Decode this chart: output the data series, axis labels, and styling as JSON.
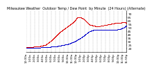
{
  "title": "Milwaukee Weather  Outdoor Temp / Dew Point  by Minute  (24 Hours) (Alternate)",
  "bg_color": "#ffffff",
  "plot_bg": "#ffffff",
  "grid_color": "#aaaaaa",
  "temp_color": "#dd0000",
  "dew_color": "#0000cc",
  "y_label_color": "#000000",
  "ylim": [
    15,
    75
  ],
  "yticks": [
    20,
    25,
    30,
    35,
    40,
    45,
    50,
    55,
    60,
    65,
    70
  ],
  "xlabel_fontsize": 3.0,
  "ylabel_fontsize": 3.2,
  "title_fontsize": 3.5,
  "num_points": 1440,
  "x_gridlines": [
    0,
    60,
    120,
    180,
    240,
    300,
    360,
    420,
    480,
    540,
    600,
    660,
    720,
    780,
    840,
    900,
    960,
    1020,
    1080,
    1140,
    1200,
    1260,
    1320,
    1380,
    1439
  ],
  "temp_sparse_indices": [
    0,
    100,
    200,
    280,
    320,
    360,
    400,
    440,
    480,
    520,
    560,
    600,
    640,
    680,
    700,
    720,
    740,
    760,
    780,
    800,
    820,
    840,
    860,
    880,
    900,
    920,
    960,
    1000,
    1050,
    1100,
    1150,
    1200,
    1250,
    1300,
    1350,
    1400,
    1439
  ],
  "temp_sparse_values": [
    22,
    22,
    23,
    25,
    28,
    31,
    35,
    39,
    43,
    46,
    49,
    52,
    55,
    58,
    60,
    63,
    65,
    65,
    65,
    64,
    63,
    61,
    59,
    57,
    55,
    54,
    53,
    52,
    52,
    53,
    54,
    55,
    56,
    57,
    57,
    58,
    57
  ],
  "dew_sparse_indices": [
    0,
    100,
    200,
    300,
    350,
    400,
    450,
    500,
    550,
    600,
    650,
    700,
    750,
    800,
    850,
    900,
    950,
    1000,
    1050,
    1100,
    1150,
    1200,
    1250,
    1300,
    1350,
    1400,
    1439
  ],
  "dew_sparse_values": [
    21,
    21,
    21,
    22,
    22,
    23,
    23,
    24,
    25,
    26,
    28,
    30,
    33,
    36,
    40,
    44,
    46,
    47,
    47,
    47,
    47,
    47,
    47,
    47,
    48,
    50,
    53
  ],
  "x_tick_positions": [
    0,
    60,
    120,
    180,
    240,
    300,
    360,
    420,
    480,
    540,
    600,
    660,
    720,
    780,
    840,
    900,
    960,
    1020,
    1080,
    1140,
    1200,
    1260,
    1320,
    1380,
    1439
  ],
  "x_tick_labels": [
    "12:00a",
    "1:00a",
    "2:00a",
    "3:00a",
    "4:00a",
    "5:00a",
    "6:00a",
    "7:00a",
    "8:00a",
    "9:00a",
    "10:00a",
    "11:00a",
    "12:00p",
    "1:00p",
    "2:00p",
    "3:00p",
    "4:00p",
    "5:00p",
    "6:00p",
    "7:00p",
    "8:00p",
    "9:00p",
    "10:00p",
    "11:00p",
    "11:59p"
  ]
}
